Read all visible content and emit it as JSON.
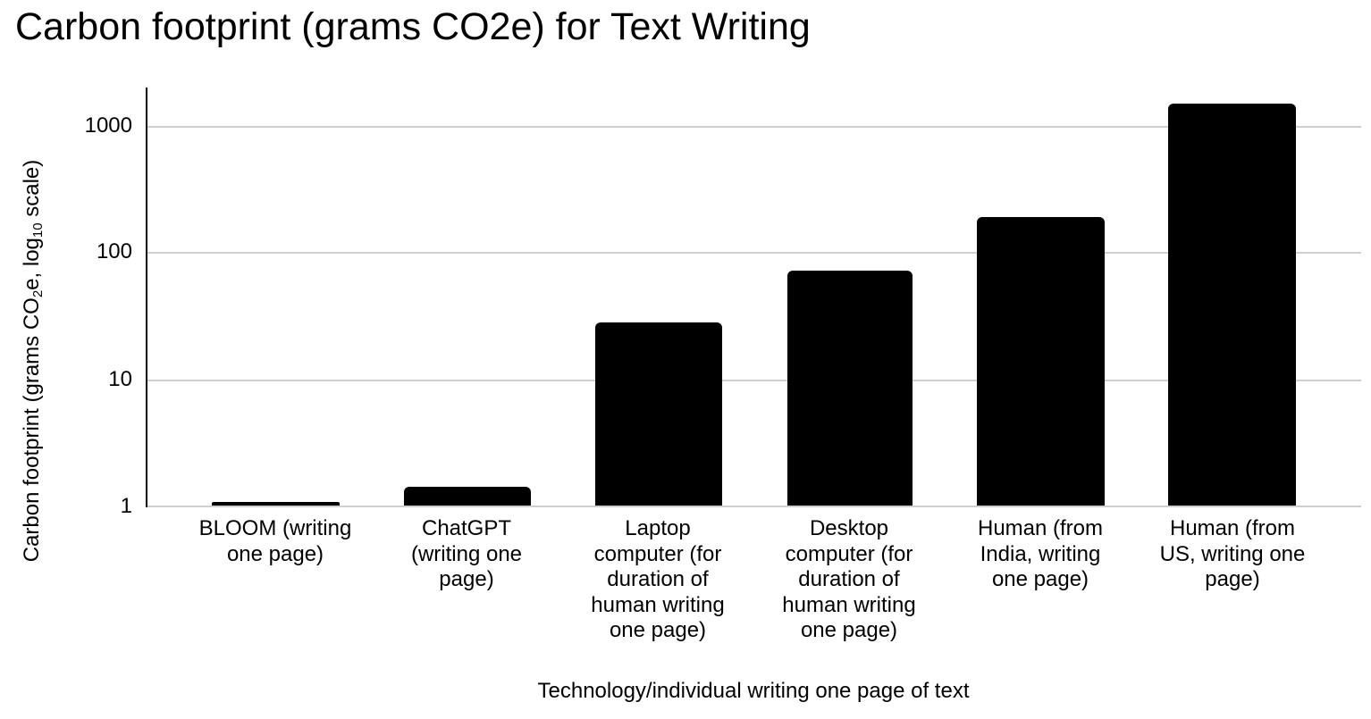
{
  "chart_data": {
    "type": "bar",
    "title": "Carbon footprint (grams CO2e) for Text Writing",
    "xlabel": "Technology/individual writing one page of text",
    "ylabel": {
      "prefix": "Carbon footprint (grams CO",
      "sub1": "2",
      "mid": "e, log",
      "sub2": "10",
      "suffix": " scale)"
    },
    "ylabel_text": "Carbon footprint (grams CO2e, log10 scale)",
    "yscale": "log10",
    "ylim": [
      1,
      2000
    ],
    "yticks": [
      "1",
      "10",
      "100",
      "1000"
    ],
    "grid": true,
    "legend": null,
    "categories": [
      "BLOOM (writing one page)",
      "ChatGPT (writing one page)",
      "Laptop computer (for duration of human writing one page)",
      "Desktop computer (for duration of human writing one page)",
      "Human (from India, writing one page)",
      "Human (from US, writing one page)"
    ],
    "category_lines": [
      [
        "BLOOM (writing",
        "one page)"
      ],
      [
        "ChatGPT",
        "(writing one",
        "page)"
      ],
      [
        "Laptop",
        "computer (for",
        "duration of",
        "human writing",
        "one page)"
      ],
      [
        "Desktop",
        "computer (for",
        "duration of",
        "human writing",
        "one page)"
      ],
      [
        "Human (from",
        "India, writing",
        "one page)"
      ],
      [
        "Human (from",
        "US, writing one",
        "page)"
      ]
    ],
    "values": [
      1.07,
      1.4,
      28,
      72,
      190,
      1500
    ],
    "bar_color": "#000000",
    "grid_color": "#cfcfcf"
  }
}
